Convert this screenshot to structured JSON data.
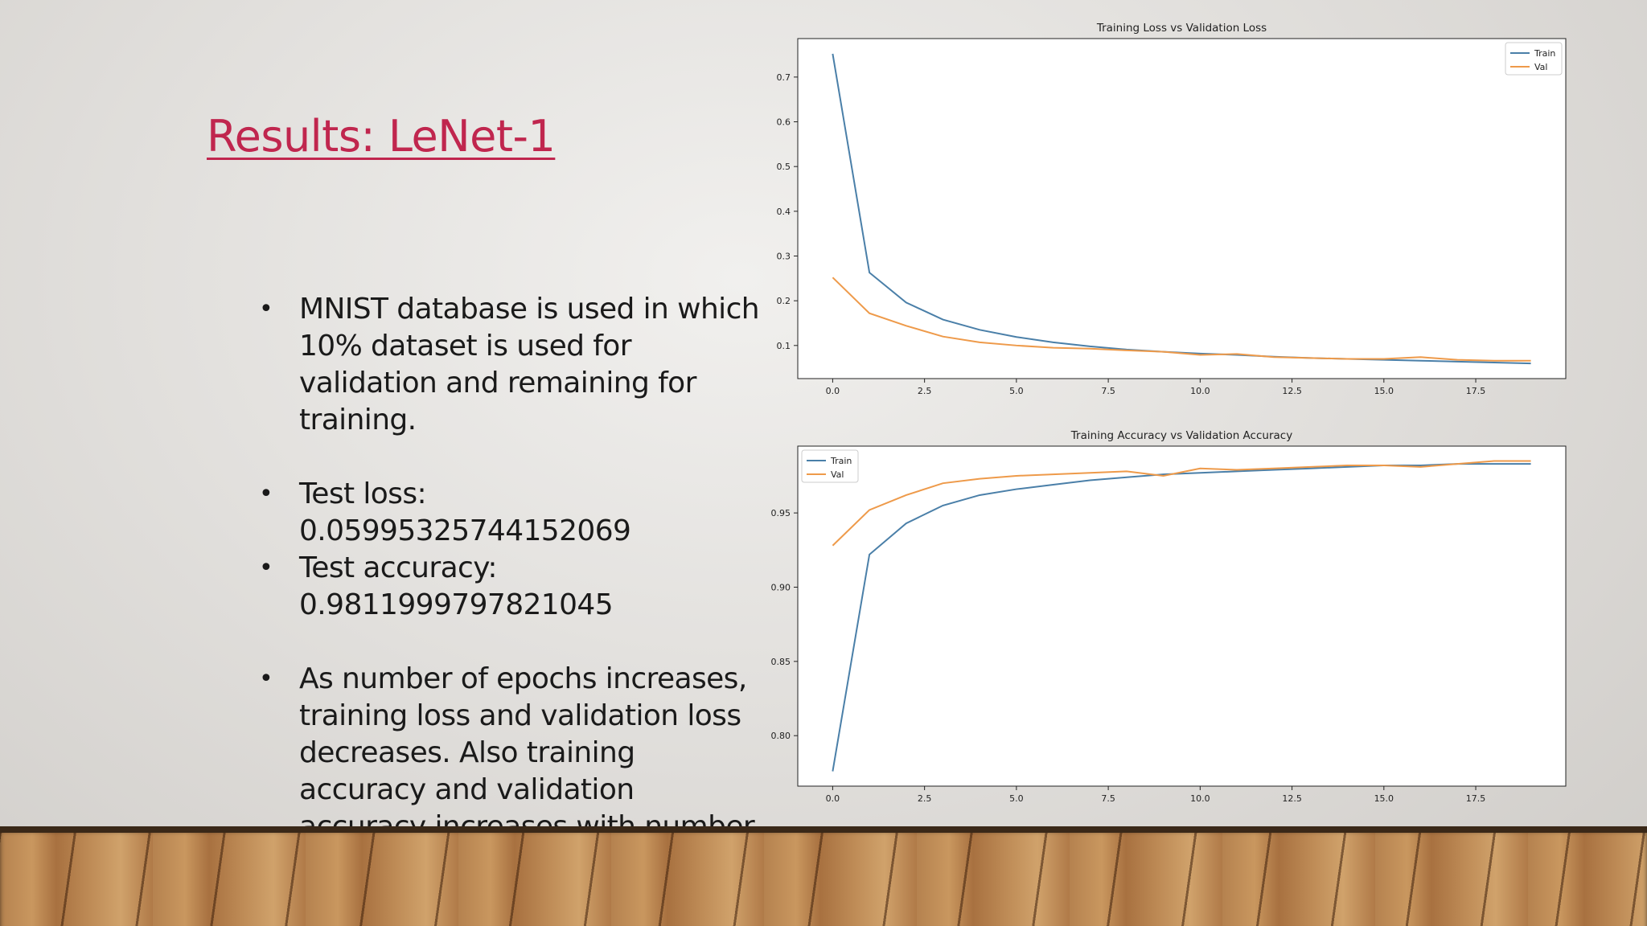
{
  "slide": {
    "title": "Results: LeNet-1",
    "bullets": [
      "MNIST database is used in which 10% dataset is used for validation and remaining for training.",
      "Test loss: 0.05995325744152069",
      "Test accuracy: 0.9811999797821045",
      "As number of epochs increases, training loss and validation loss decreases. Also training accuracy and validation accuracy increases with number of epochs."
    ]
  },
  "colors": {
    "train": "#4a7fa8",
    "val": "#ee9a4a",
    "title": "#c0264e"
  },
  "chart_data": [
    {
      "type": "line",
      "title": "Training Loss vs Validation Loss",
      "x": [
        0,
        1,
        2,
        3,
        4,
        5,
        6,
        7,
        8,
        9,
        10,
        11,
        12,
        13,
        14,
        15,
        16,
        17,
        18,
        19
      ],
      "series": [
        {
          "name": "Train",
          "values": [
            0.752,
            0.263,
            0.196,
            0.158,
            0.135,
            0.119,
            0.107,
            0.098,
            0.091,
            0.086,
            0.082,
            0.079,
            0.075,
            0.072,
            0.07,
            0.068,
            0.066,
            0.064,
            0.062,
            0.06
          ]
        },
        {
          "name": "Val",
          "values": [
            0.252,
            0.172,
            0.144,
            0.12,
            0.107,
            0.1,
            0.095,
            0.093,
            0.089,
            0.086,
            0.079,
            0.081,
            0.074,
            0.072,
            0.07,
            0.07,
            0.074,
            0.068,
            0.066,
            0.066
          ]
        }
      ],
      "xticks": [
        "0.0",
        "2.5",
        "5.0",
        "7.5",
        "10.0",
        "12.5",
        "15.0",
        "17.5"
      ],
      "xtick_values": [
        0,
        2.5,
        5,
        7.5,
        10,
        12.5,
        15,
        17.5
      ],
      "yticks": [
        "0.1",
        "0.2",
        "0.3",
        "0.4",
        "0.5",
        "0.6",
        "0.7"
      ],
      "ytick_values": [
        0.1,
        0.2,
        0.3,
        0.4,
        0.5,
        0.6,
        0.7
      ],
      "xlim": [
        -0.95,
        19.95
      ],
      "ylim": [
        0.026,
        0.786
      ],
      "legend": "top-right",
      "grid": false
    },
    {
      "type": "line",
      "title": "Training Accuracy vs Validation Accuracy",
      "x": [
        0,
        1,
        2,
        3,
        4,
        5,
        6,
        7,
        8,
        9,
        10,
        11,
        12,
        13,
        14,
        15,
        16,
        17,
        18,
        19
      ],
      "series": [
        {
          "name": "Train",
          "values": [
            0.776,
            0.922,
            0.943,
            0.955,
            0.962,
            0.966,
            0.969,
            0.972,
            0.974,
            0.976,
            0.977,
            0.978,
            0.979,
            0.98,
            0.981,
            0.982,
            0.982,
            0.983,
            0.983,
            0.983
          ]
        },
        {
          "name": "Val",
          "values": [
            0.928,
            0.952,
            0.962,
            0.97,
            0.973,
            0.975,
            0.976,
            0.977,
            0.978,
            0.975,
            0.98,
            0.979,
            0.98,
            0.981,
            0.982,
            0.982,
            0.981,
            0.983,
            0.985,
            0.985
          ]
        }
      ],
      "xticks": [
        "0.0",
        "2.5",
        "5.0",
        "7.5",
        "10.0",
        "12.5",
        "15.0",
        "17.5"
      ],
      "xtick_values": [
        0,
        2.5,
        5,
        7.5,
        10,
        12.5,
        15,
        17.5
      ],
      "yticks": [
        "0.80",
        "0.85",
        "0.90",
        "0.95"
      ],
      "ytick_values": [
        0.8,
        0.85,
        0.9,
        0.95
      ],
      "xlim": [
        -0.95,
        19.95
      ],
      "ylim": [
        0.766,
        0.995
      ],
      "legend": "top-left",
      "grid": false
    }
  ]
}
